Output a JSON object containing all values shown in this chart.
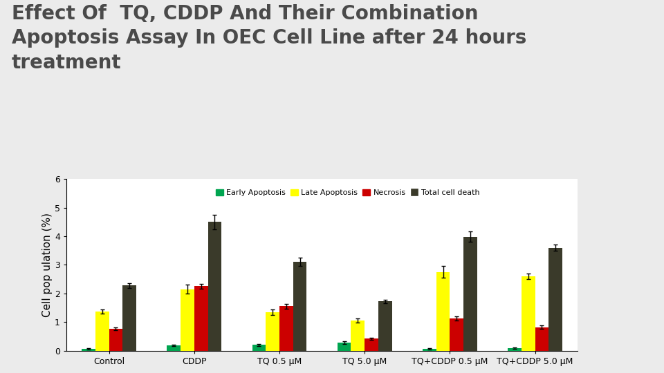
{
  "title_line1": "Effect Of  TQ, CDDP And Their Combination",
  "title_line2": "Apoptosis Assay In OEC Cell Line after 24 hours",
  "title_line3": "treatment",
  "title_color": "#4a4a4a",
  "title_fontsize": 20,
  "background_color": "#ebebeb",
  "plot_background": "#ffffff",
  "ylabel": "Cell pop ulation (%)",
  "ylabel_fontsize": 11,
  "ylim": [
    0,
    6
  ],
  "yticks": [
    0,
    1,
    2,
    3,
    4,
    5,
    6
  ],
  "categories": [
    "Control",
    "CDDP",
    "TQ 0.5 μM",
    "TQ 5.0 μM",
    "TQ+CDDP 0.5 μM",
    "TQ+CDDP 5.0 μM"
  ],
  "series_names": [
    "Early Apoptosis",
    "Late Apoptosis",
    "Necrosis",
    "Total cell death"
  ],
  "series_colors": [
    "#00a550",
    "#ffff00",
    "#cc0000",
    "#3a3a2a"
  ],
  "values": [
    [
      0.07,
      0.18,
      0.2,
      0.28,
      0.07,
      0.08
    ],
    [
      1.37,
      2.15,
      1.35,
      1.05,
      2.75,
      2.6
    ],
    [
      0.77,
      2.25,
      1.55,
      0.42,
      1.13,
      0.82
    ],
    [
      2.28,
      4.5,
      3.1,
      1.72,
      3.98,
      3.6
    ]
  ],
  "errors": [
    [
      0.02,
      0.03,
      0.04,
      0.04,
      0.02,
      0.02
    ],
    [
      0.08,
      0.15,
      0.1,
      0.07,
      0.2,
      0.1
    ],
    [
      0.05,
      0.08,
      0.08,
      0.04,
      0.07,
      0.06
    ],
    [
      0.08,
      0.25,
      0.15,
      0.06,
      0.18,
      0.1
    ]
  ],
  "bar_width": 0.16,
  "tick_fontsize": 9,
  "legend_fontsize": 8,
  "sidebar_color1": "#6b6147",
  "sidebar_color2": "#b5a882",
  "sidebar_color3": "#6b6147"
}
